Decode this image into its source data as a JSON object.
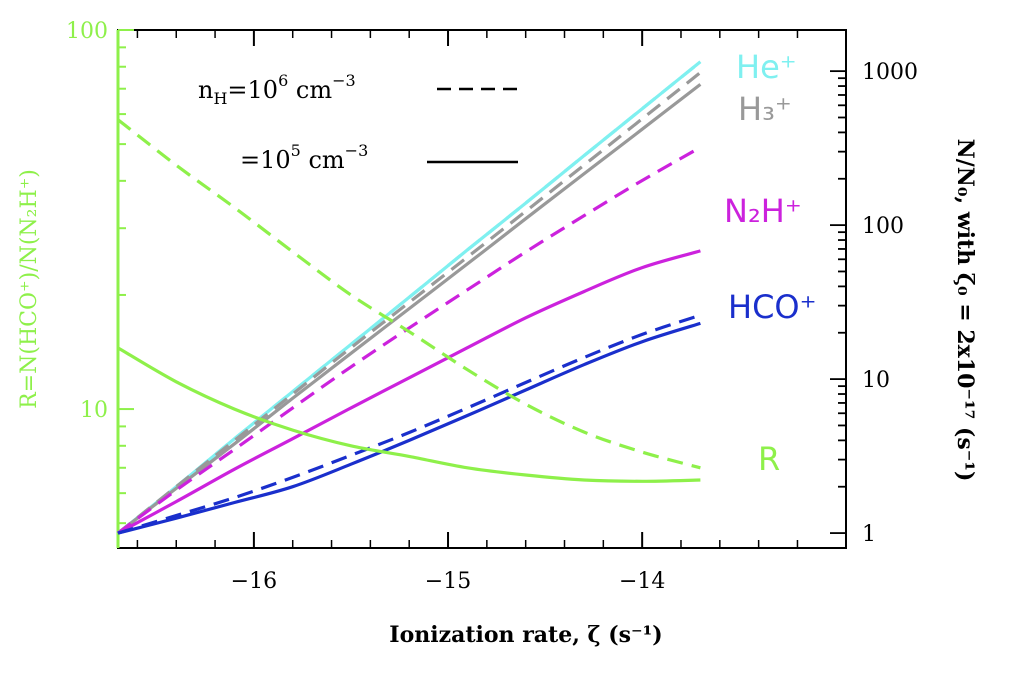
{
  "chart_data": {
    "type": "line",
    "xlabel": "Ionization rate, ζ (s⁻¹)",
    "ylabel_left": "R=N(HCO⁺)/N(N₂H⁺)",
    "ylabel_right": "N/N₀, with ζ₀ = 2x10⁻¹⁷ (s⁻¹)",
    "x_ticks": [
      "−16",
      "−15",
      "−14"
    ],
    "x_tick_values": [
      -16,
      -15,
      -14
    ],
    "xlim": [
      -16.7,
      -12.95
    ],
    "left_axis": {
      "scale": "log",
      "ylim": [
        4.3,
        100
      ],
      "ticks": [
        "10",
        "100"
      ],
      "tick_values": [
        10,
        100
      ],
      "color": "#8ef04a"
    },
    "right_axis": {
      "scale": "log",
      "ylim": [
        0.8,
        1850
      ],
      "ticks": [
        "1",
        "10",
        "100",
        "1000"
      ],
      "tick_values": [
        1,
        10,
        100,
        1000
      ]
    },
    "legend": {
      "position": "top-left",
      "entries": [
        {
          "text": "n_H=10^6 cm^-3",
          "style": "dashed"
        },
        {
          "text": "=10^5 cm^-3",
          "style": "solid"
        }
      ]
    },
    "curve_labels": {
      "he": "He⁺",
      "h3": "H₃⁺",
      "n2h": "N₂H⁺",
      "hco": "HCO⁺",
      "r": "R"
    },
    "x": [
      -16.7,
      -16.4,
      -16.1,
      -15.8,
      -15.5,
      -15.2,
      -14.9,
      -14.6,
      -14.3,
      -14.0,
      -13.7
    ],
    "series": [
      {
        "key": "he",
        "axis": "right",
        "style": "solid",
        "color": "#7ff0f0",
        "values": [
          1,
          2.0,
          4.1,
          8.3,
          16.8,
          34,
          69,
          139,
          282,
          570,
          1150
        ]
      },
      {
        "key": "he",
        "axis": "right",
        "style": "dashed",
        "color": "#7ff0f0",
        "values": [
          1,
          2.0,
          4.1,
          8.3,
          16.8,
          34,
          69,
          139,
          282,
          570,
          1150
        ]
      },
      {
        "key": "h3",
        "axis": "right",
        "style": "dashed",
        "color": "#999999",
        "values": [
          1,
          2.0,
          4.0,
          8.0,
          16,
          31.5,
          62,
          123,
          245,
          490,
          980
        ]
      },
      {
        "key": "h3",
        "axis": "right",
        "style": "solid",
        "color": "#999999",
        "values": [
          1,
          1.95,
          3.8,
          7.5,
          14.7,
          28.7,
          56,
          110,
          215,
          420,
          820
        ]
      },
      {
        "key": "n2h",
        "axis": "right",
        "style": "dashed",
        "color": "#cc22dd",
        "values": [
          1,
          1.9,
          3.5,
          6.5,
          12,
          21.5,
          38,
          67,
          115,
          195,
          320
        ]
      },
      {
        "key": "n2h",
        "axis": "right",
        "style": "solid",
        "color": "#cc22dd",
        "values": [
          1,
          1.6,
          2.6,
          4.1,
          6.5,
          10.2,
          16,
          25,
          37,
          53,
          68
        ]
      },
      {
        "key": "hco",
        "axis": "right",
        "style": "dashed",
        "color": "#1a2fcc",
        "values": [
          1,
          1.3,
          1.7,
          2.3,
          3.2,
          4.5,
          6.5,
          9.5,
          13.8,
          19.5,
          26
        ]
      },
      {
        "key": "hco",
        "axis": "right",
        "style": "solid",
        "color": "#1a2fcc",
        "values": [
          1,
          1.25,
          1.58,
          2.0,
          2.8,
          4.0,
          5.8,
          8.5,
          12.4,
          17.5,
          23
        ]
      },
      {
        "key": "r",
        "axis": "left",
        "style": "dashed",
        "color": "#8ef04a",
        "values": [
          58,
          44,
          34,
          26,
          20,
          16,
          12.7,
          10.3,
          8.7,
          7.7,
          7.0
        ]
      },
      {
        "key": "r",
        "axis": "left",
        "style": "solid",
        "color": "#8ef04a",
        "values": [
          14.5,
          11.8,
          10.0,
          8.8,
          8.0,
          7.5,
          7.0,
          6.7,
          6.5,
          6.45,
          6.5
        ]
      }
    ]
  }
}
